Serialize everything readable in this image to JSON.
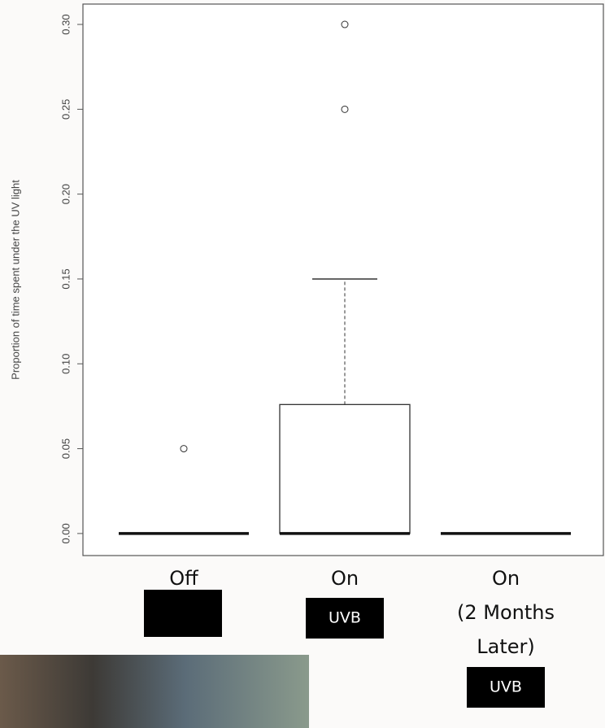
{
  "chart_data": {
    "type": "box",
    "y_label": "Proportion of time spent under the UV light",
    "categories": [
      [
        "Off"
      ],
      [
        "On"
      ],
      [
        "On",
        "(2 Months",
        "Later)"
      ]
    ],
    "boxes": [
      {
        "min": 0,
        "q1": 0,
        "median": 0,
        "q3": 0,
        "max": 0,
        "outliers": [
          0.05
        ]
      },
      {
        "min": 0,
        "q1": 0,
        "median": 0,
        "q3": 0.076,
        "max": 0.15,
        "outliers": [
          0.25,
          0.3
        ]
      },
      {
        "min": 0,
        "q1": 0,
        "median": 0,
        "q3": 0,
        "max": 0,
        "outliers": []
      }
    ],
    "badges": [
      null,
      "UVB",
      "UVB"
    ],
    "ylim": [
      -0.013,
      0.312
    ],
    "yticks": [
      {
        "value": 0,
        "label": "0.00"
      },
      {
        "value": 0.05,
        "label": "0.05"
      },
      {
        "value": 0.1,
        "label": "0.10"
      },
      {
        "value": 0.15,
        "label": "0.15"
      },
      {
        "value": 0.2,
        "label": "0.20"
      },
      {
        "value": 0.25,
        "label": "0.25"
      },
      {
        "value": 0.3,
        "label": "0.30"
      }
    ]
  }
}
